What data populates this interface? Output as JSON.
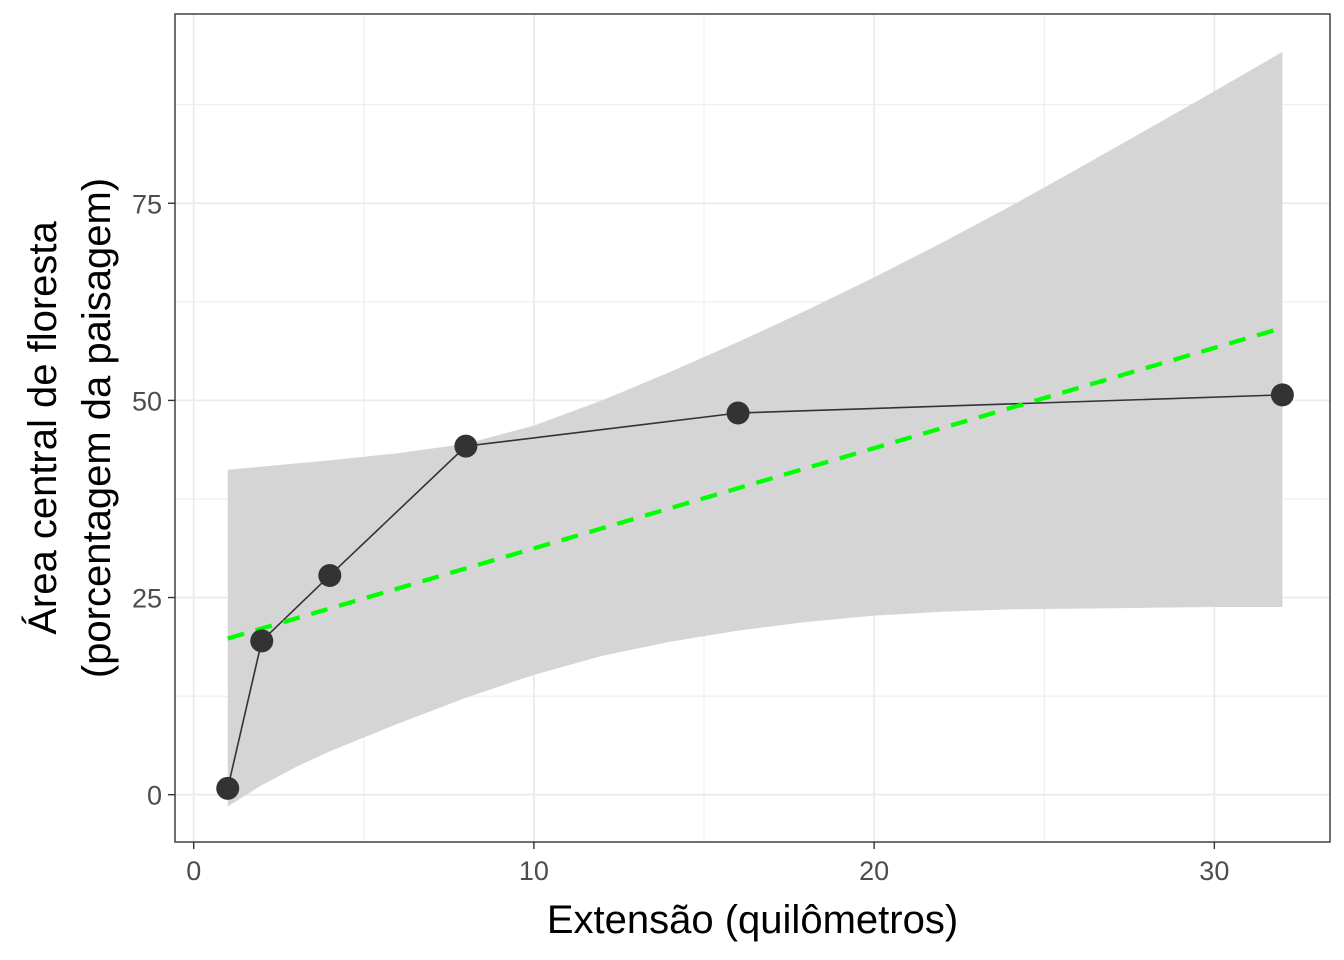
{
  "chart_data": {
    "type": "line",
    "xlabel": "Extensão (quilômetros)",
    "ylabel_line1": "Área central de floresta",
    "ylabel_line2": "(porcentagem da paisagem)",
    "xlim": [
      -0.55,
      33.4
    ],
    "ylim": [
      -6,
      99
    ],
    "x_ticks": [
      0,
      10,
      20,
      30
    ],
    "y_ticks": [
      0,
      25,
      50,
      75
    ],
    "grid": true,
    "series": [
      {
        "kind": "observed",
        "x": [
          1,
          2,
          4,
          8,
          16,
          32
        ],
        "y": [
          0.8,
          19.5,
          27.8,
          44.2,
          48.4,
          50.7
        ]
      },
      {
        "kind": "linear-fit",
        "x": [
          1,
          32
        ],
        "y": [
          19.8,
          59.2
        ]
      }
    ],
    "confidence_band": {
      "x": [
        1,
        2,
        3,
        4,
        6,
        8,
        10,
        12,
        14,
        16,
        18,
        20,
        22,
        24,
        26,
        28,
        30,
        32
      ],
      "upper": [
        41.2,
        41.6,
        42.0,
        42.4,
        43.3,
        44.5,
        46.8,
        50.0,
        53.6,
        57.4,
        61.4,
        65.6,
        70.0,
        74.6,
        79.4,
        84.3,
        89.2,
        94.2
      ],
      "lower": [
        -1.5,
        1.2,
        3.5,
        5.5,
        9.0,
        12.3,
        15.2,
        17.6,
        19.4,
        20.8,
        21.9,
        22.7,
        23.2,
        23.5,
        23.6,
        23.7,
        23.8,
        23.8
      ]
    },
    "colors": {
      "points": "#333333",
      "line": "#333333",
      "fit": "#00ff00",
      "band": "#d5d5d5",
      "grid": "#ebebeb",
      "panel_border": "#333333",
      "tick_text": "#4d4d4d"
    }
  }
}
